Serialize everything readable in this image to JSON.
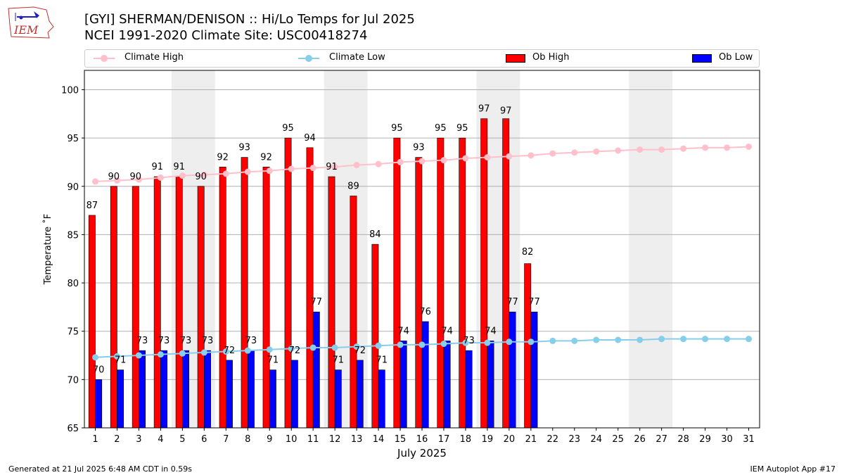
{
  "header": {
    "logo_text": "IEM",
    "title_line1": "[GYI] SHERMAN/DENISON :: Hi/Lo Temps for Jul 2025",
    "title_line2": "NCEI 1991-2020 Climate Site: USC00418274"
  },
  "legend": {
    "climate_high": "Climate High",
    "climate_low": "Climate Low",
    "ob_high": "Ob High",
    "ob_low": "Ob Low"
  },
  "colors": {
    "climate_high": "#ffc0cb",
    "climate_low": "#87ceeb",
    "ob_high": "#ff0000",
    "ob_low": "#0000ff",
    "weekend_shade": "#eeeeee",
    "grid": "#b0b0b0"
  },
  "footer": {
    "left": "Generated at 21 Jul 2025 6:48 AM CDT in 0.59s",
    "right": "IEM Autoplot App #17"
  },
  "chart_data": {
    "type": "bar",
    "xlabel": "July 2025",
    "ylabel": "Temperature ˚F",
    "ylim": [
      65,
      102
    ],
    "yticks": [
      65,
      70,
      75,
      80,
      85,
      90,
      95,
      100
    ],
    "grid": "horizontal",
    "legend_position": "top",
    "days": [
      1,
      2,
      3,
      4,
      5,
      6,
      7,
      8,
      9,
      10,
      11,
      12,
      13,
      14,
      15,
      16,
      17,
      18,
      19,
      20,
      21,
      22,
      23,
      24,
      25,
      26,
      27,
      28,
      29,
      30,
      31
    ],
    "shaded_day_pairs": [
      [
        5,
        6
      ],
      [
        12,
        13
      ],
      [
        19,
        20
      ],
      [
        26,
        27
      ]
    ],
    "ob_high": [
      87,
      90,
      90,
      91,
      91,
      90,
      92,
      93,
      92,
      95,
      94,
      91,
      89,
      84,
      95,
      93,
      95,
      95,
      97,
      97,
      82
    ],
    "ob_high_labels": [
      "87",
      "90",
      "90",
      "91",
      "91",
      "90",
      "92",
      "93",
      "92",
      "95",
      "94",
      "91",
      "89",
      "84",
      "95",
      "93",
      "95",
      "95",
      "97",
      "97",
      "82"
    ],
    "ob_high_label_values": [
      87,
      90,
      90,
      91,
      91,
      90,
      92,
      93,
      92,
      95,
      94,
      91,
      89,
      84,
      95,
      93,
      95,
      95,
      97,
      96.8,
      82.2
    ],
    "ob_low": [
      70,
      71,
      73,
      73,
      73,
      73,
      72,
      73,
      71,
      72,
      77,
      71,
      72,
      71,
      74,
      76,
      74,
      73,
      74,
      77,
      77
    ],
    "ob_low_labels": [
      "70",
      "71",
      "73",
      "73",
      "73",
      "73",
      "72",
      "73",
      "71",
      "72",
      "77",
      "71",
      "72",
      "71",
      "74",
      "76",
      "74",
      "73",
      "74",
      "77",
      "77"
    ],
    "climate_high": [
      90.5,
      90.6,
      90.7,
      90.9,
      91.1,
      91.2,
      91.3,
      91.5,
      91.6,
      91.8,
      91.9,
      92.0,
      92.2,
      92.3,
      92.5,
      92.6,
      92.7,
      92.9,
      93.0,
      93.1,
      93.2,
      93.4,
      93.5,
      93.6,
      93.7,
      93.8,
      93.8,
      93.9,
      94.0,
      94.0,
      94.1
    ],
    "climate_low": [
      72.3,
      72.4,
      72.5,
      72.6,
      72.7,
      72.8,
      72.9,
      73.0,
      73.1,
      73.2,
      73.3,
      73.3,
      73.4,
      73.5,
      73.6,
      73.6,
      73.7,
      73.8,
      73.8,
      73.9,
      73.9,
      74.0,
      74.0,
      74.1,
      74.1,
      74.1,
      74.2,
      74.2,
      74.2,
      74.2,
      74.2
    ]
  }
}
